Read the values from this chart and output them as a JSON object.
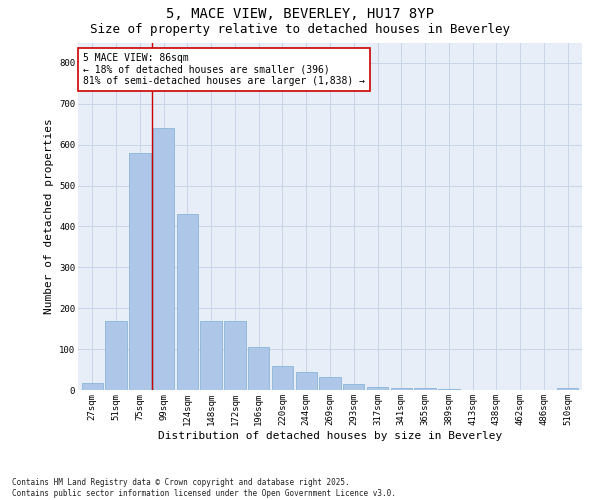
{
  "title_line1": "5, MACE VIEW, BEVERLEY, HU17 8YP",
  "title_line2": "Size of property relative to detached houses in Beverley",
  "xlabel": "Distribution of detached houses by size in Beverley",
  "ylabel": "Number of detached properties",
  "categories": [
    "27sqm",
    "51sqm",
    "75sqm",
    "99sqm",
    "124sqm",
    "148sqm",
    "172sqm",
    "196sqm",
    "220sqm",
    "244sqm",
    "269sqm",
    "293sqm",
    "317sqm",
    "341sqm",
    "365sqm",
    "389sqm",
    "413sqm",
    "438sqm",
    "462sqm",
    "486sqm",
    "510sqm"
  ],
  "values": [
    17,
    168,
    580,
    640,
    430,
    170,
    170,
    105,
    58,
    43,
    33,
    14,
    8,
    5,
    5,
    3,
    0,
    0,
    0,
    0,
    5
  ],
  "bar_color": "#aec6e8",
  "bar_edge_color": "#7bafd4",
  "grid_color": "#c8d4e8",
  "background_color": "#e8eef8",
  "vline_x_index": 2.5,
  "vline_color": "#cc0000",
  "annotation_text": "5 MACE VIEW: 86sqm\n← 18% of detached houses are smaller (396)\n81% of semi-detached houses are larger (1,838) →",
  "annotation_box_facecolor": "#ffffff",
  "annotation_box_edgecolor": "#cc0000",
  "ylim": [
    0,
    850
  ],
  "yticks": [
    0,
    100,
    200,
    300,
    400,
    500,
    600,
    700,
    800
  ],
  "footer_text": "Contains HM Land Registry data © Crown copyright and database right 2025.\nContains public sector information licensed under the Open Government Licence v3.0.",
  "title_fontsize": 10,
  "subtitle_fontsize": 9,
  "axis_label_fontsize": 8,
  "tick_fontsize": 6.5,
  "annotation_fontsize": 7,
  "footer_fontsize": 5.5
}
